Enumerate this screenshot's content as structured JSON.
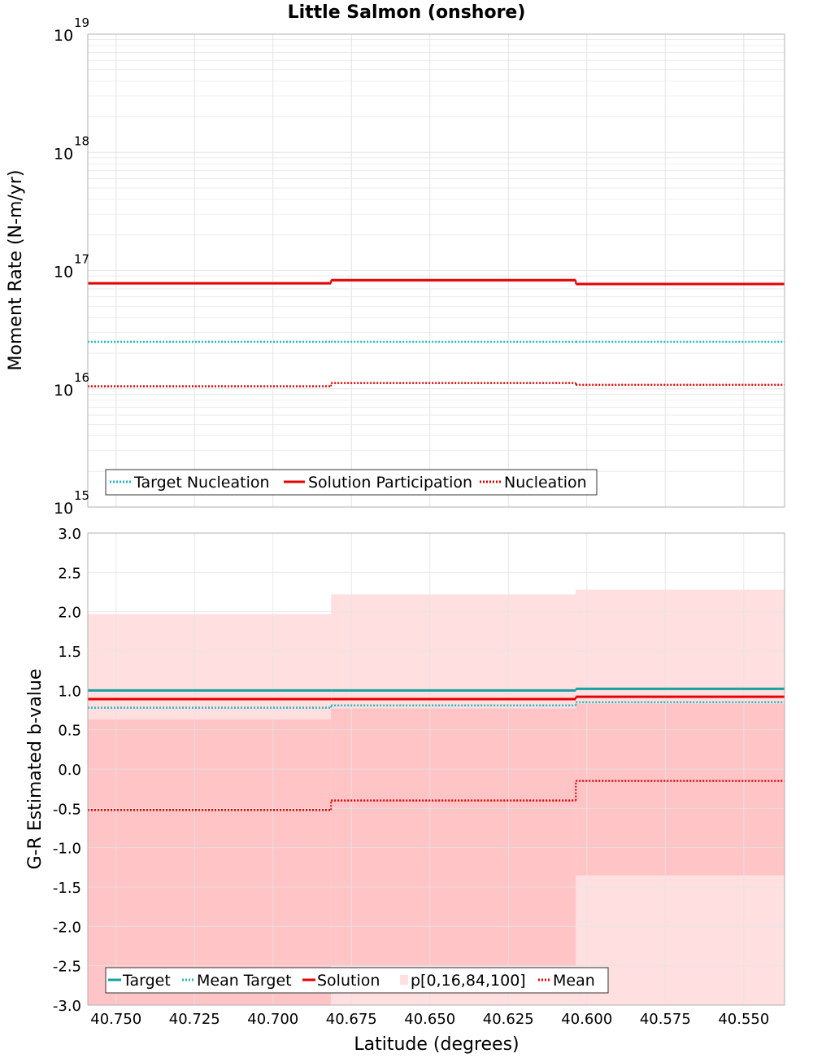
{
  "title": "Little Salmon (onshore)",
  "x_label": "Latitude (degrees)",
  "x_ticks": [
    "40.750",
    "40.725",
    "40.700",
    "40.675",
    "40.650",
    "40.625",
    "40.600",
    "40.575",
    "40.550"
  ],
  "colors": {
    "target": "#1aa0a0",
    "mean_target": "#22b8c0",
    "solution": "#e60000",
    "band_outer": "#ffdfe0",
    "band_inner": "#ffc4c6",
    "grid": "#e4e4e4",
    "axis": "#b0b0b0"
  },
  "chart_data": [
    {
      "type": "line",
      "title": "Little Salmon (onshore)",
      "ylabel": "Moment Rate (N-m/yr)",
      "yscale": "log",
      "ylim": [
        1000000000000000.0,
        1e+19
      ],
      "xlim": [
        40.759,
        40.537
      ],
      "y_ticks": [
        {
          "base": "10",
          "exp": "19",
          "value": 1e+19
        },
        {
          "base": "10",
          "exp": "18",
          "value": 1e+18
        },
        {
          "base": "10",
          "exp": "17",
          "value": 1e+17
        },
        {
          "base": "10",
          "exp": "16",
          "value": 1e+16
        },
        {
          "base": "10",
          "exp": "15",
          "value": 1000000000000000.0
        }
      ],
      "bins": [
        [
          40.759,
          40.6815
        ],
        [
          40.6815,
          40.6035
        ],
        [
          40.6035,
          40.537
        ]
      ],
      "series": [
        {
          "name": "Target Nucleation",
          "style": "dotted",
          "color": "#22b8c0",
          "values": [
            2.5e+16,
            2.5e+16,
            2.5e+16
          ]
        },
        {
          "name": "Solution Participation",
          "style": "solid",
          "color": "#e60000",
          "values": [
            7.8e+16,
            8.3e+16,
            7.7e+16
          ]
        },
        {
          "name": "Nucleation",
          "style": "dotted",
          "color": "#e60000",
          "values": [
            1.05e+16,
            1.12e+16,
            1.08e+16
          ]
        }
      ],
      "legend": [
        "Target Nucleation",
        "Solution Participation",
        "Nucleation"
      ],
      "legend_position": "bottom-left",
      "grid": true
    },
    {
      "type": "line",
      "xlabel": "Latitude (degrees)",
      "ylabel": "G-R Estimated b-value",
      "ylim": [
        -3.0,
        3.0
      ],
      "xlim": [
        40.759,
        40.537
      ],
      "y_ticks": [
        "3.0",
        "2.5",
        "2.0",
        "1.5",
        "1.0",
        "0.5",
        "0.0",
        "-0.5",
        "-1.0",
        "-1.5",
        "-2.0",
        "-2.5",
        "-3.0"
      ],
      "bins": [
        [
          40.759,
          40.6815
        ],
        [
          40.6815,
          40.6035
        ],
        [
          40.6035,
          40.537
        ]
      ],
      "bands": {
        "name": "p[0,16,84,100]",
        "p0": [
          -3.0,
          -3.0,
          -3.0
        ],
        "p16": [
          -3.0,
          -2.5,
          -1.35
        ],
        "p84": [
          0.63,
          0.77,
          0.83
        ],
        "p100": [
          1.97,
          2.22,
          2.28
        ]
      },
      "series": [
        {
          "name": "Target",
          "style": "solid",
          "color": "#1aa0a0",
          "values": [
            1.0,
            1.0,
            1.02
          ]
        },
        {
          "name": "Mean Target",
          "style": "dotted",
          "color": "#22b8c0",
          "values": [
            0.78,
            0.81,
            0.85
          ]
        },
        {
          "name": "Solution",
          "style": "solid",
          "color": "#e60000",
          "values": [
            0.89,
            0.89,
            0.92
          ]
        },
        {
          "name": "Mean",
          "style": "dotted",
          "color": "#e60000",
          "values": [
            -0.52,
            -0.4,
            -0.15
          ]
        }
      ],
      "legend": [
        "Target",
        "Mean Target",
        "Solution",
        "p[0,16,84,100]",
        "Mean"
      ],
      "legend_position": "bottom-left",
      "grid": true
    }
  ]
}
